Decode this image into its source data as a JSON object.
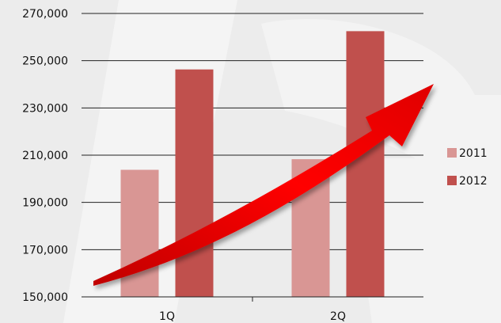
{
  "chart_data": {
    "type": "bar",
    "categories": [
      "1Q",
      "2Q"
    ],
    "series": [
      {
        "name": "2011",
        "values": [
          203800,
          208300
        ],
        "color": "#d99694"
      },
      {
        "name": "2012",
        "values": [
          246300,
          262500
        ],
        "color": "#c0504d"
      }
    ],
    "ylim": [
      150000,
      270000
    ],
    "yticks": [
      150000,
      170000,
      190000,
      210000,
      230000,
      250000,
      270000
    ],
    "ytick_labels": [
      "150,000",
      "170,000",
      "190,000",
      "210,000",
      "230,000",
      "250,000",
      "270,000"
    ],
    "grid": true,
    "legend": "right",
    "annotation": "red-trend-arrow"
  }
}
